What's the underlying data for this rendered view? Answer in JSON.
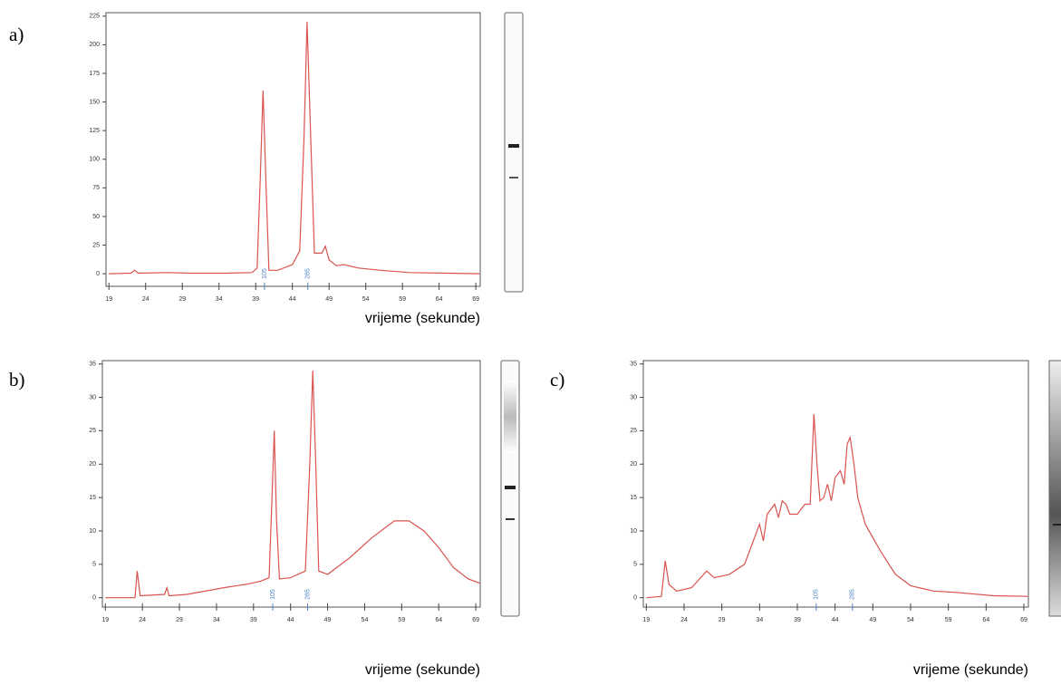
{
  "chart_data": [
    {
      "type": "line",
      "panel_label": "a)",
      "xlabel": "vrijeme (sekunde)",
      "x": [
        19,
        22,
        22.5,
        23,
        27,
        30,
        35,
        38.5,
        39.2,
        39.6,
        40,
        40.4,
        40.8,
        42,
        44,
        45,
        45.6,
        46,
        46.5,
        47,
        48,
        48.5,
        49,
        50,
        51,
        53,
        56,
        60,
        65,
        69.5
      ],
      "series": [
        {
          "color": "#d9534f",
          "values": [
            0,
            0.5,
            3,
            0.5,
            1,
            0.5,
            0.5,
            1,
            5,
            80,
            160,
            80,
            3,
            3,
            8,
            20,
            120,
            220,
            120,
            18,
            18,
            24,
            12,
            7,
            8,
            5,
            3,
            1,
            0.5,
            0
          ]
        }
      ],
      "xlim": [
        18.6,
        69.6
      ],
      "ylim": [
        -11,
        228
      ],
      "xticks": [
        19,
        24,
        29,
        34,
        39,
        44,
        49,
        54,
        59,
        64,
        69
      ],
      "yticks": [
        0,
        25,
        50,
        75,
        100,
        125,
        150,
        175,
        200,
        225
      ],
      "annotations": [
        {
          "text": "105",
          "x": 40.2
        },
        {
          "text": "285",
          "x": 46.1
        }
      ]
    },
    {
      "type": "line",
      "panel_label": "b)",
      "xlabel": "vrijeme (sekunde)",
      "x": [
        19,
        23,
        23.3,
        23.7,
        27,
        27.3,
        27.6,
        30,
        35,
        38,
        40,
        41.1,
        41.5,
        41.8,
        42.1,
        42.5,
        44,
        46,
        46.6,
        47,
        47.4,
        47.8,
        49,
        52,
        55,
        58,
        60,
        62,
        64,
        66,
        68,
        69.5
      ],
      "series": [
        {
          "color": "#d9534f",
          "values": [
            0,
            0,
            4,
            0.3,
            0.5,
            1.5,
            0.3,
            0.5,
            1.5,
            2,
            2.5,
            3,
            15,
            25,
            12,
            2.8,
            3,
            4,
            20,
            34,
            20,
            4,
            3.5,
            6,
            9,
            11.5,
            11.5,
            10,
            7.5,
            4.5,
            2.8,
            2.2
          ]
        }
      ],
      "xlim": [
        18.6,
        69.6
      ],
      "ylim": [
        -1.4,
        35.5
      ],
      "xticks": [
        19,
        24,
        29,
        34,
        39,
        44,
        49,
        54,
        59,
        64,
        69
      ],
      "yticks": [
        0,
        5,
        10,
        15,
        20,
        25,
        30,
        35
      ],
      "annotations": [
        {
          "text": "105",
          "x": 41.6
        },
        {
          "text": "285",
          "x": 46.3
        }
      ]
    },
    {
      "type": "line",
      "panel_label": "c)",
      "xlabel": "vrijeme (sekunde)",
      "x": [
        19,
        21,
        21.5,
        22,
        23,
        25,
        27,
        28,
        30,
        32,
        33,
        34,
        34.5,
        35,
        36,
        36.5,
        37,
        37.5,
        38,
        39,
        40,
        40.7,
        41.2,
        41.6,
        42,
        42.5,
        43,
        43.5,
        44,
        44.7,
        45.2,
        45.6,
        46,
        46.5,
        47,
        48,
        50,
        52,
        54,
        57,
        60,
        65,
        69.5
      ],
      "series": [
        {
          "color": "#d9534f",
          "values": [
            0,
            0.2,
            5.5,
            2,
            1,
            1.5,
            4,
            3,
            3.5,
            5,
            8,
            11,
            8.5,
            12.5,
            14,
            12,
            14.5,
            14,
            12.5,
            12.5,
            14,
            14,
            27.5,
            20,
            14.5,
            15,
            17,
            14.5,
            18,
            19,
            17,
            23,
            24,
            20,
            15,
            11,
            7,
            3.5,
            1.8,
            1,
            0.8,
            0.3,
            0.2
          ]
        }
      ],
      "xlim": [
        18.6,
        69.6
      ],
      "ylim": [
        -1.4,
        35.5
      ],
      "xticks": [
        19,
        24,
        29,
        34,
        39,
        44,
        49,
        54,
        59,
        64,
        69
      ],
      "yticks": [
        0,
        5,
        10,
        15,
        20,
        25,
        30,
        35
      ],
      "annotations": [
        {
          "text": "105",
          "x": 41.5
        },
        {
          "text": "285",
          "x": 46.3
        }
      ]
    }
  ]
}
